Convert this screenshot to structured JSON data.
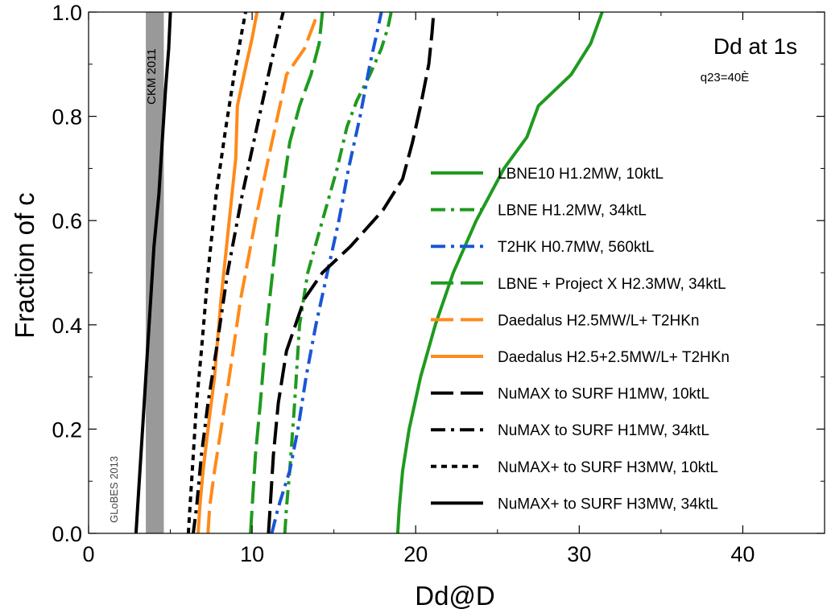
{
  "chart_data": {
    "type": "line",
    "xlabel": "Dd@D",
    "ylabel": "Fraction of c",
    "xlim": [
      0,
      45
    ],
    "ylim": [
      0,
      1
    ],
    "x_ticks": [
      "0",
      "10",
      "20",
      "30",
      "40"
    ],
    "y_ticks": [
      "0.0",
      "0.2",
      "0.4",
      "0.6",
      "0.8",
      "1.0"
    ],
    "annotation": {
      "title": "Dd at 1s",
      "subtitle": "q23=40È"
    },
    "band": {
      "label": "CKM 2011",
      "range": [
        3.5,
        4.6
      ],
      "color": "#999999"
    },
    "credit": "GLoBES 2013",
    "legend_position": "right",
    "series": [
      {
        "name": "LBNE10 H1.2MW, 10ktL",
        "color": "#1f9a1f",
        "style": "solid",
        "points": [
          [
            18.9,
            0
          ],
          [
            19.0,
            0.05
          ],
          [
            19.2,
            0.12
          ],
          [
            19.6,
            0.2
          ],
          [
            20.3,
            0.3
          ],
          [
            21.2,
            0.4
          ],
          [
            22.3,
            0.5
          ],
          [
            23.7,
            0.6
          ],
          [
            25.4,
            0.7
          ],
          [
            26.8,
            0.76
          ],
          [
            27.5,
            0.82
          ],
          [
            29.5,
            0.88
          ],
          [
            30.7,
            0.94
          ],
          [
            31.4,
            1.0
          ]
        ]
      },
      {
        "name": "LBNE H1.2MW, 34ktL",
        "color": "#1f9a1f",
        "style": "dashdot",
        "points": [
          [
            12.0,
            0
          ],
          [
            12.1,
            0.05
          ],
          [
            12.3,
            0.12
          ],
          [
            12.6,
            0.25
          ],
          [
            12.9,
            0.4
          ],
          [
            13.4,
            0.5
          ],
          [
            14.3,
            0.6
          ],
          [
            15.2,
            0.7
          ],
          [
            15.8,
            0.78
          ],
          [
            16.4,
            0.83
          ],
          [
            17.2,
            0.88
          ],
          [
            17.9,
            0.93
          ],
          [
            18.3,
            0.97
          ],
          [
            18.5,
            1.0
          ]
        ]
      },
      {
        "name": "T2HK H0.7MW, 560ktL",
        "color": "#1a55d6",
        "style": "dashdot",
        "points": [
          [
            11.2,
            0
          ],
          [
            11.6,
            0.05
          ],
          [
            12.3,
            0.12
          ],
          [
            12.8,
            0.2
          ],
          [
            13.3,
            0.3
          ],
          [
            13.9,
            0.4
          ],
          [
            14.6,
            0.5
          ],
          [
            15.3,
            0.6
          ],
          [
            15.9,
            0.7
          ],
          [
            16.6,
            0.8
          ],
          [
            17.2,
            0.9
          ],
          [
            17.7,
            0.97
          ],
          [
            17.9,
            1.0
          ]
        ]
      },
      {
        "name": "LBNE + Project X H2.3MW, 34ktL",
        "color": "#1f9a1f",
        "style": "longdash",
        "points": [
          [
            9.9,
            0
          ],
          [
            10.0,
            0.05
          ],
          [
            10.2,
            0.15
          ],
          [
            10.5,
            0.25
          ],
          [
            10.9,
            0.4
          ],
          [
            11.6,
            0.6
          ],
          [
            12.3,
            0.75
          ],
          [
            12.9,
            0.82
          ],
          [
            13.6,
            0.88
          ],
          [
            14.1,
            0.94
          ],
          [
            14.3,
            1.0
          ]
        ]
      },
      {
        "name": "Daedalus H2.5MW/L+ T2HKn",
        "color": "#ff8a1a",
        "style": "longdash",
        "points": [
          [
            7.3,
            0
          ],
          [
            7.4,
            0.05
          ],
          [
            7.7,
            0.12
          ],
          [
            8.1,
            0.2
          ],
          [
            8.6,
            0.3
          ],
          [
            9.3,
            0.45
          ],
          [
            10.2,
            0.6
          ],
          [
            11.0,
            0.72
          ],
          [
            11.7,
            0.82
          ],
          [
            12.1,
            0.88
          ],
          [
            13.2,
            0.93
          ],
          [
            13.8,
            0.98
          ],
          [
            14.0,
            1.0
          ]
        ]
      },
      {
        "name": "Daedalus H2.5+2.5MW/L+ T2HKn",
        "color": "#ff8a1a",
        "style": "solid",
        "points": [
          [
            6.7,
            0
          ],
          [
            6.8,
            0.05
          ],
          [
            7.0,
            0.12
          ],
          [
            7.3,
            0.2
          ],
          [
            7.7,
            0.3
          ],
          [
            8.1,
            0.45
          ],
          [
            8.6,
            0.6
          ],
          [
            9.0,
            0.72
          ],
          [
            9.1,
            0.82
          ],
          [
            9.5,
            0.88
          ],
          [
            10.0,
            0.95
          ],
          [
            10.3,
            1.0
          ]
        ]
      },
      {
        "name": "NuMAX to SURF H1MW, 10ktL",
        "color": "#000000",
        "style": "longdash",
        "points": [
          [
            11.0,
            0
          ],
          [
            11.1,
            0.05
          ],
          [
            11.3,
            0.15
          ],
          [
            11.6,
            0.25
          ],
          [
            12.1,
            0.35
          ],
          [
            13.2,
            0.45
          ],
          [
            14.3,
            0.5
          ],
          [
            16.0,
            0.55
          ],
          [
            18.0,
            0.62
          ],
          [
            19.2,
            0.68
          ],
          [
            19.8,
            0.75
          ],
          [
            20.3,
            0.82
          ],
          [
            20.8,
            0.9
          ],
          [
            21.0,
            0.96
          ],
          [
            21.1,
            1.0
          ]
        ]
      },
      {
        "name": "NuMAX to SURF H1MW, 34ktL",
        "color": "#000000",
        "style": "dashdot",
        "points": [
          [
            6.4,
            0
          ],
          [
            6.6,
            0.05
          ],
          [
            6.9,
            0.15
          ],
          [
            7.3,
            0.25
          ],
          [
            7.8,
            0.35
          ],
          [
            8.5,
            0.5
          ],
          [
            9.4,
            0.65
          ],
          [
            10.3,
            0.78
          ],
          [
            11.0,
            0.88
          ],
          [
            11.5,
            0.95
          ],
          [
            11.9,
            1.0
          ]
        ]
      },
      {
        "name": "NuMAX+ to SURF H3MW, 10ktL",
        "color": "#000000",
        "style": "dotted",
        "points": [
          [
            6.1,
            0
          ],
          [
            6.2,
            0.05
          ],
          [
            6.4,
            0.15
          ],
          [
            6.6,
            0.25
          ],
          [
            6.9,
            0.35
          ],
          [
            7.3,
            0.5
          ],
          [
            7.8,
            0.65
          ],
          [
            8.4,
            0.78
          ],
          [
            8.9,
            0.88
          ],
          [
            9.3,
            0.95
          ],
          [
            9.6,
            1.0
          ]
        ]
      },
      {
        "name": "NuMAX+ to SURF H3MW, 34ktL",
        "color": "#000000",
        "style": "solid",
        "points": [
          [
            2.9,
            0
          ],
          [
            3.0,
            0.05
          ],
          [
            3.2,
            0.15
          ],
          [
            3.4,
            0.25
          ],
          [
            3.6,
            0.35
          ],
          [
            3.8,
            0.45
          ],
          [
            4.0,
            0.55
          ],
          [
            4.3,
            0.65
          ],
          [
            4.5,
            0.75
          ],
          [
            4.7,
            0.85
          ],
          [
            4.9,
            0.93
          ],
          [
            5.0,
            1.0
          ]
        ]
      }
    ]
  }
}
